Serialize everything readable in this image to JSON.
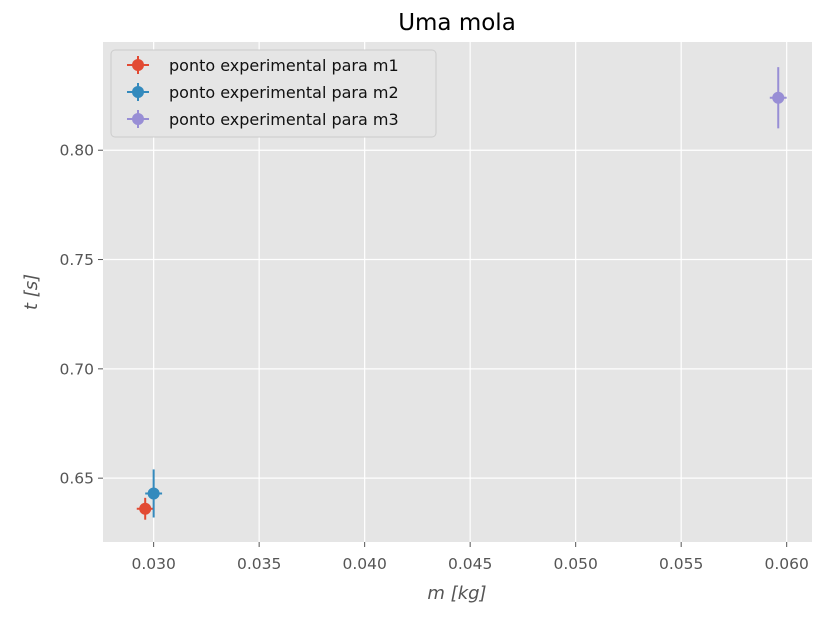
{
  "chart_data": {
    "type": "scatter",
    "title": "Uma mola",
    "xlabel": "m [kg]",
    "ylabel": "t [s]",
    "xlim": [
      0.0276,
      0.0612
    ],
    "ylim": [
      0.6208,
      0.8495
    ],
    "xticks": [
      0.03,
      0.035,
      0.04,
      0.045,
      0.05,
      0.055,
      0.06
    ],
    "xtick_labels": [
      "0.030",
      "0.035",
      "0.040",
      "0.045",
      "0.050",
      "0.055",
      "0.060"
    ],
    "yticks": [
      0.65,
      0.7,
      0.75,
      0.8
    ],
    "ytick_labels": [
      "0.65",
      "0.70",
      "0.75",
      "0.80"
    ],
    "grid": true,
    "legend_position": "top-left",
    "series": [
      {
        "name": "ponto experimental para m1",
        "color": "#E24A33",
        "x": 0.0296,
        "y": 0.636,
        "xerr": 0.0004,
        "yerr": 0.005
      },
      {
        "name": "ponto experimental para m2",
        "color": "#348ABD",
        "x": 0.03,
        "y": 0.643,
        "xerr": 0.0004,
        "yerr": 0.011
      },
      {
        "name": "ponto experimental para m3",
        "color": "#988ED5",
        "x": 0.0596,
        "y": 0.824,
        "xerr": 0.0004,
        "yerr": 0.014
      }
    ]
  }
}
